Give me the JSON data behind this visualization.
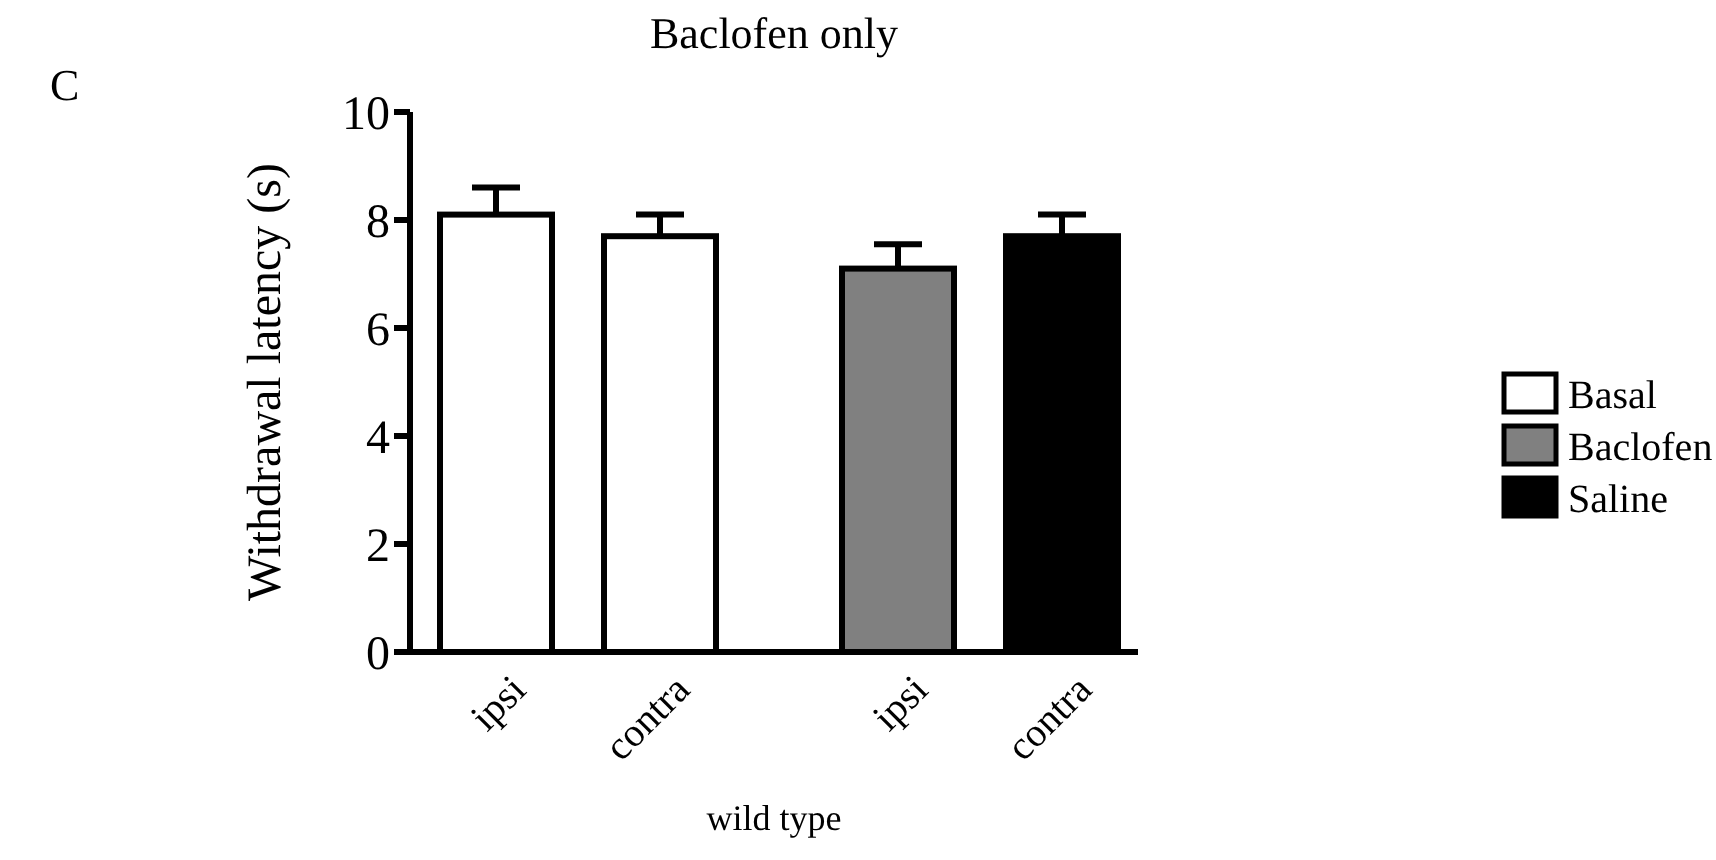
{
  "chart_data": {
    "type": "bar",
    "title": "Baclofen only",
    "xlabel": "wild type",
    "ylabel": "Withdrawal latency (s)",
    "annotations": [
      "C"
    ],
    "categories": [
      "ipsi",
      "contra",
      "ipsi",
      "contra"
    ],
    "series": [
      {
        "name": "Basal",
        "color": "#ffffff",
        "values": [
          8.1,
          7.7,
          null,
          null
        ],
        "errors": [
          0.5,
          0.4,
          null,
          null
        ]
      },
      {
        "name": "Baclofen",
        "color": "#808080",
        "values": [
          null,
          null,
          7.1,
          null
        ],
        "errors": [
          null,
          null,
          0.45,
          null
        ]
      },
      {
        "name": "Saline",
        "color": "#000000",
        "values": [
          null,
          null,
          null,
          7.7
        ],
        "errors": [
          null,
          null,
          null,
          0.4
        ]
      }
    ],
    "ylim": [
      0,
      10
    ],
    "yticks": [
      0,
      2,
      4,
      6,
      8,
      10
    ],
    "grid": false,
    "legend": "right"
  }
}
